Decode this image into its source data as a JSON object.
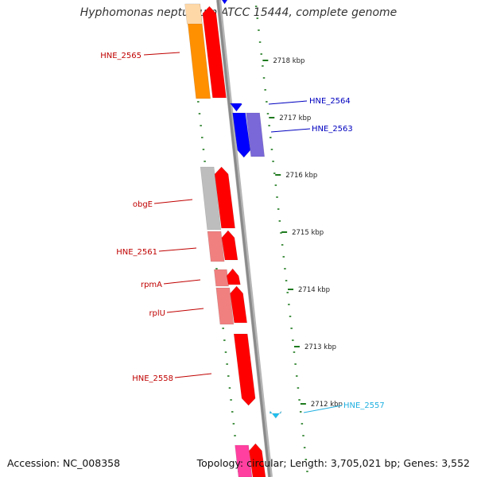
{
  "title": "Hyphomonas neptunium ATCC 15444, complete genome",
  "accession": "Accession: NC_008358",
  "summary": "Topology: circular; Length: 3,705,021 bp; Genes: 3,552",
  "colors": {
    "backbone": "#8a8a8a",
    "tick": "#1e7a1e",
    "red": "#ff0000",
    "salmon": "#f08080",
    "orange": "#ff9000",
    "peach": "#ffd8a8",
    "blue": "#0000ff",
    "purple": "#7a68d8",
    "gray": "#bdbdbd",
    "pink": "#ff40a0",
    "cyan": "#20c0f0",
    "label_red": "#c00000",
    "label_blue": "#0000c0",
    "label_cyan": "#20b0e0"
  },
  "kbp_ticks": [
    "2718 kbp",
    "2717 kbp",
    "2716 kbp",
    "2715 kbp",
    "2714 kbp",
    "2713 kbp",
    "2712 kbp"
  ],
  "gene_labels": [
    {
      "name": "HNE_2565",
      "side": "left",
      "color": "label_red"
    },
    {
      "name": "HNE_2564",
      "side": "right",
      "color": "label_blue"
    },
    {
      "name": "HNE_2563",
      "side": "right",
      "color": "label_blue"
    },
    {
      "name": "obgE",
      "side": "left",
      "color": "label_red"
    },
    {
      "name": "HNE_2561",
      "side": "left",
      "color": "label_red"
    },
    {
      "name": "rpmA",
      "side": "left",
      "color": "label_red"
    },
    {
      "name": "rplU",
      "side": "left",
      "color": "label_red"
    },
    {
      "name": "HNE_2558",
      "side": "left",
      "color": "label_red"
    },
    {
      "name": "HNE_2557",
      "side": "right",
      "color": "label_cyan"
    }
  ]
}
